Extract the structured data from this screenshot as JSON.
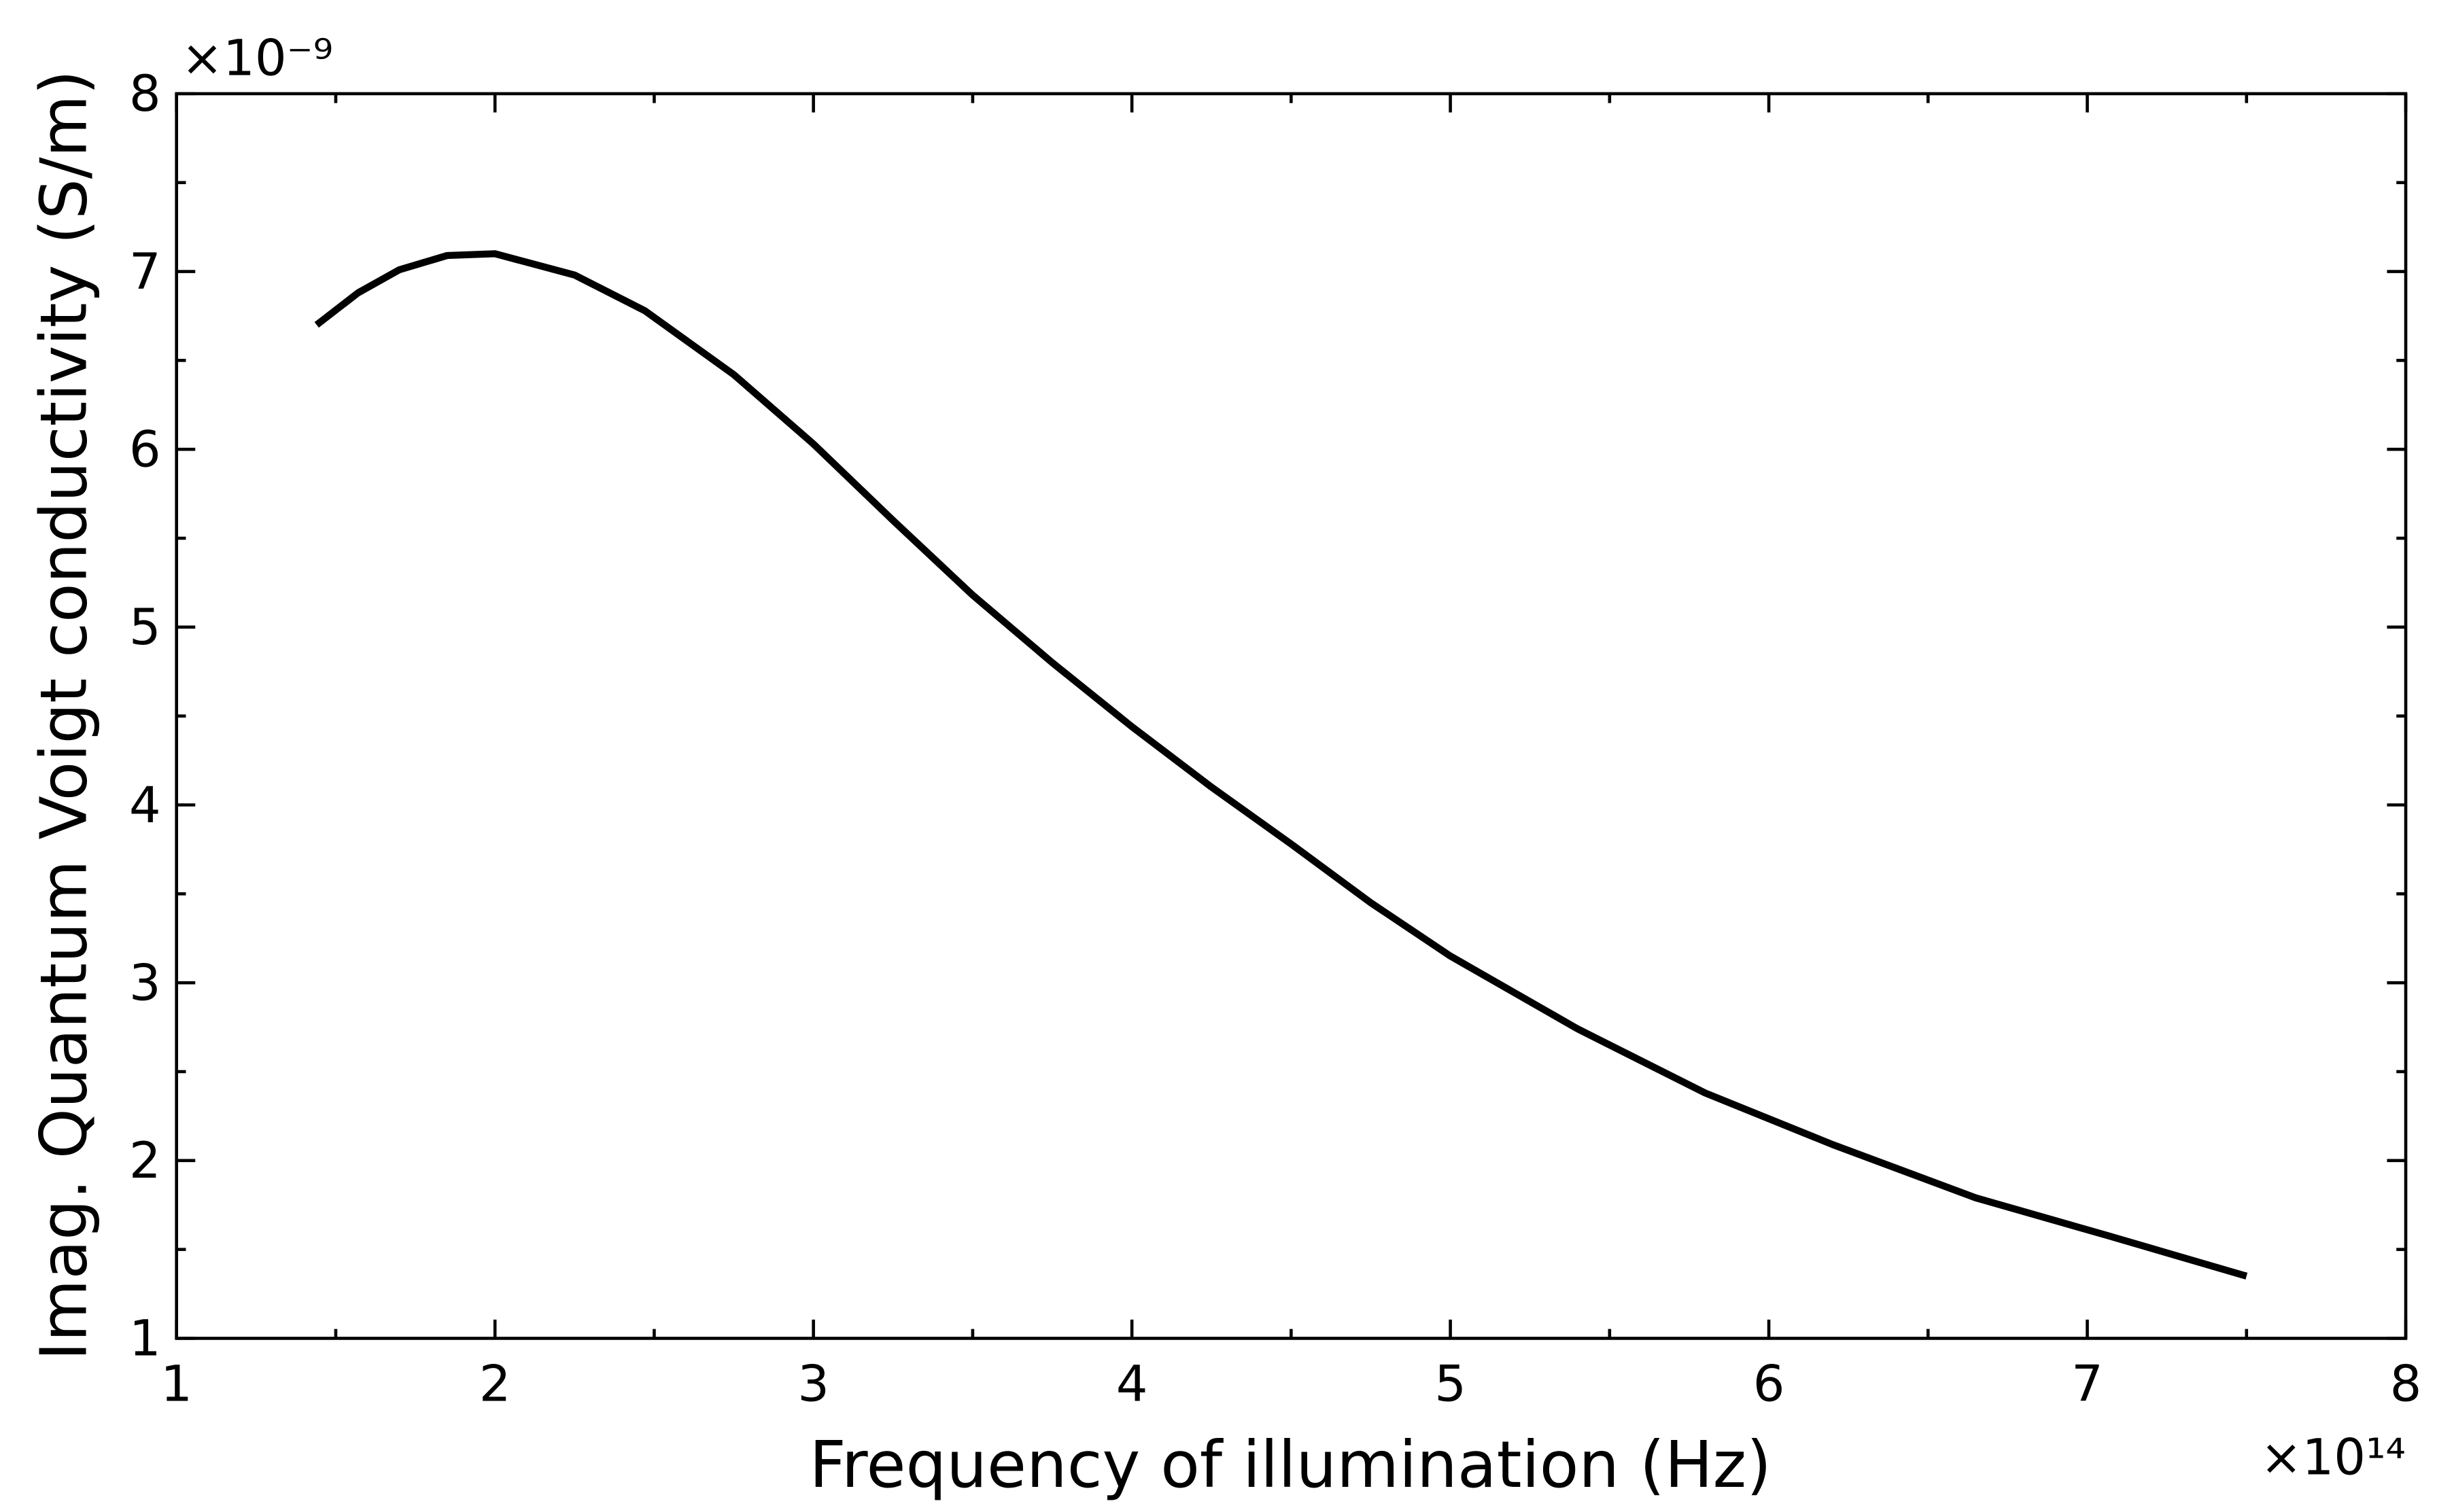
{
  "chart_data": {
    "type": "line",
    "x_label": "Frequency of illumination (Hz)",
    "y_label": "Imag. Quantum Voigt conductivity (S/m)",
    "x_multiplier": "×10¹⁴",
    "y_multiplier": "×10⁻⁹",
    "x": [
      1.44,
      1.57,
      1.7,
      1.85,
      2.0,
      2.25,
      2.47,
      2.75,
      3.0,
      3.25,
      3.5,
      3.75,
      4.0,
      4.25,
      4.5,
      4.75,
      5.0,
      5.4,
      5.8,
      6.2,
      6.65,
      7.06,
      7.5
    ],
    "series": [
      {
        "color": "#000000",
        "values": [
          6.7,
          6.88,
          7.01,
          7.09,
          7.1,
          6.98,
          6.78,
          6.42,
          6.03,
          5.6,
          5.18,
          4.8,
          4.44,
          4.1,
          3.78,
          3.45,
          3.15,
          2.74,
          2.38,
          2.09,
          1.79,
          1.58,
          1.35
        ]
      }
    ],
    "xlim": [
      1,
      8
    ],
    "ylim": [
      1,
      8
    ],
    "xticks": [
      1,
      2,
      3,
      4,
      5,
      6,
      7,
      8
    ],
    "yticks": [
      1,
      2,
      3,
      4,
      5,
      6,
      7,
      8
    ],
    "xticks_minor": [
      1.5,
      2.5,
      3.5,
      4.5,
      5.5,
      6.5,
      7.5
    ],
    "yticks_minor": [
      1.5,
      2.5,
      3.5,
      4.5,
      5.5,
      6.5,
      7.5
    ],
    "grid": false
  }
}
